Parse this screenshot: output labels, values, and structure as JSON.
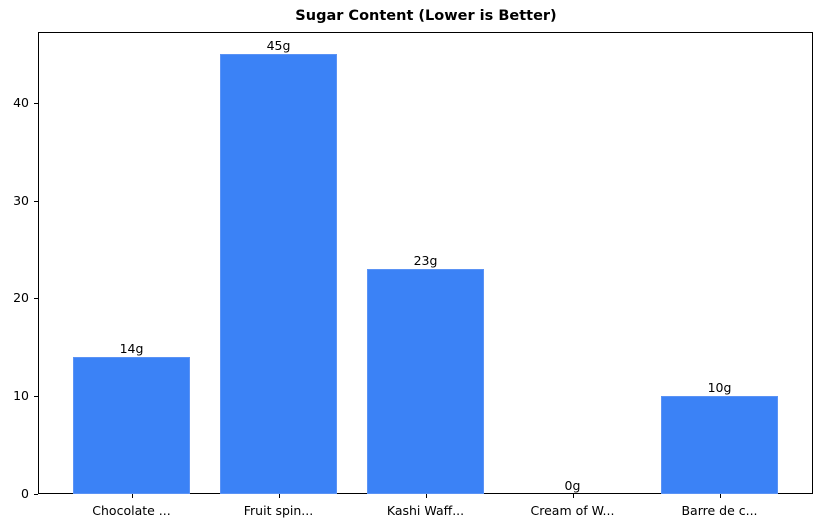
{
  "chart_data": {
    "type": "bar",
    "title": "Sugar Content (Lower is Better)",
    "xlabel": "",
    "ylabel": "",
    "categories": [
      "Chocolate ...",
      "Fruit spin...",
      "Kashi Waff...",
      "Cream of W...",
      "Barre de c..."
    ],
    "values": [
      14,
      45,
      23,
      0,
      10
    ],
    "value_labels": [
      "14g",
      "45g",
      "23g",
      "0g",
      "10g"
    ],
    "yticks": [
      0,
      10,
      20,
      30,
      40
    ],
    "ylim": [
      0,
      47.25
    ],
    "grid": false,
    "legend": null,
    "bar_color": "#3b82f6"
  }
}
